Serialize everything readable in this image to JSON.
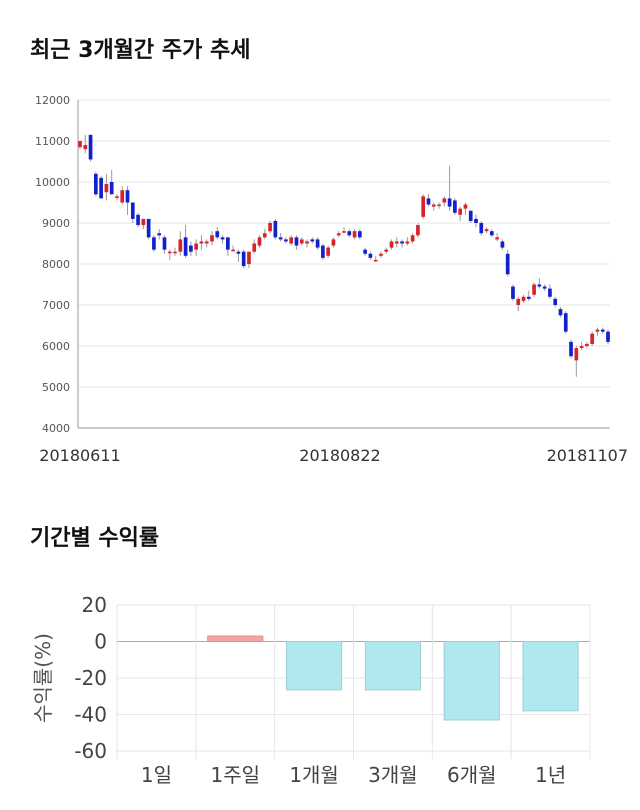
{
  "headings": {
    "price_trend": "최근 3개월간 주가 추세",
    "period_returns": "기간별 수익률"
  },
  "chart_data": [
    {
      "type": "candlestick",
      "title": "최근 3개월간 주가 추세",
      "ylim": [
        4000,
        12000
      ],
      "y_ticks": [
        "12000",
        "11000",
        "10000",
        "9000",
        "8000",
        "7000",
        "6000",
        "5000",
        "4000"
      ],
      "x_tick_labels": [
        "20180611",
        "20180822",
        "20181107"
      ],
      "grid": true,
      "colors": {
        "up": "#d9222a",
        "down": "#1122cc",
        "wick": "#999999"
      },
      "candles": [
        [
          10850,
          11000,
          10800,
          11000
        ],
        [
          10800,
          11150,
          10700,
          10900
        ],
        [
          11150,
          11150,
          10500,
          10550
        ],
        [
          10200,
          10250,
          9650,
          9700
        ],
        [
          10100,
          10150,
          9600,
          9600
        ],
        [
          9750,
          10200,
          9550,
          9950
        ],
        [
          10000,
          10300,
          9700,
          9700
        ],
        [
          9650,
          9700,
          9550,
          9650
        ],
        [
          9500,
          9900,
          9450,
          9800
        ],
        [
          9800,
          9900,
          9200,
          9500
        ],
        [
          9500,
          9500,
          9000,
          9100
        ],
        [
          9200,
          9250,
          8900,
          8950
        ],
        [
          8950,
          9100,
          8850,
          9100
        ],
        [
          9100,
          9100,
          8600,
          8650
        ],
        [
          8650,
          8700,
          8300,
          8350
        ],
        [
          8750,
          8850,
          8600,
          8700
        ],
        [
          8650,
          8700,
          8250,
          8350
        ],
        [
          8300,
          8350,
          8100,
          8300
        ],
        [
          8300,
          8400,
          8200,
          8300
        ],
        [
          8300,
          8800,
          8200,
          8600
        ],
        [
          8650,
          8950,
          8150,
          8200
        ],
        [
          8450,
          8550,
          8200,
          8300
        ],
        [
          8350,
          8600,
          8200,
          8500
        ],
        [
          8500,
          8700,
          8350,
          8550
        ],
        [
          8500,
          8600,
          8400,
          8550
        ],
        [
          8550,
          8800,
          8450,
          8700
        ],
        [
          8800,
          8900,
          8600,
          8650
        ],
        [
          8650,
          8700,
          8500,
          8600
        ],
        [
          8650,
          8650,
          8200,
          8350
        ],
        [
          8350,
          8450,
          8300,
          8350
        ],
        [
          8300,
          8350,
          8050,
          8250
        ],
        [
          8300,
          8350,
          7900,
          7950
        ],
        [
          8000,
          8300,
          7900,
          8300
        ],
        [
          8300,
          8600,
          8250,
          8500
        ],
        [
          8450,
          8700,
          8400,
          8650
        ],
        [
          8650,
          8850,
          8600,
          8750
        ],
        [
          8800,
          9050,
          8750,
          9000
        ],
        [
          9050,
          9100,
          8600,
          8650
        ],
        [
          8650,
          8750,
          8550,
          8600
        ],
        [
          8600,
          8650,
          8500,
          8550
        ],
        [
          8500,
          8700,
          8450,
          8650
        ],
        [
          8650,
          8700,
          8350,
          8450
        ],
        [
          8500,
          8650,
          8450,
          8600
        ],
        [
          8500,
          8600,
          8400,
          8550
        ],
        [
          8600,
          8650,
          8500,
          8550
        ],
        [
          8600,
          8650,
          8350,
          8400
        ],
        [
          8450,
          8500,
          8100,
          8150
        ],
        [
          8200,
          8450,
          8150,
          8400
        ],
        [
          8450,
          8650,
          8400,
          8600
        ],
        [
          8700,
          8800,
          8650,
          8750
        ],
        [
          8800,
          8900,
          8750,
          8800
        ],
        [
          8800,
          8850,
          8650,
          8700
        ],
        [
          8650,
          8850,
          8600,
          8800
        ],
        [
          8800,
          8850,
          8600,
          8650
        ],
        [
          8350,
          8400,
          8200,
          8250
        ],
        [
          8250,
          8300,
          8100,
          8150
        ],
        [
          8100,
          8200,
          8050,
          8100
        ],
        [
          8200,
          8300,
          8150,
          8250
        ],
        [
          8300,
          8400,
          8250,
          8350
        ],
        [
          8400,
          8600,
          8350,
          8550
        ],
        [
          8500,
          8650,
          8400,
          8550
        ],
        [
          8550,
          8600,
          8400,
          8500
        ],
        [
          8500,
          8650,
          8450,
          8550
        ],
        [
          8550,
          8750,
          8500,
          8700
        ],
        [
          8700,
          9000,
          8650,
          8950
        ],
        [
          9150,
          9700,
          9100,
          9650
        ],
        [
          9600,
          9700,
          9400,
          9450
        ],
        [
          9400,
          9500,
          9300,
          9450
        ],
        [
          9450,
          9500,
          9350,
          9450
        ],
        [
          9500,
          9650,
          9400,
          9600
        ],
        [
          9600,
          10400,
          9300,
          9400
        ],
        [
          9550,
          9600,
          9200,
          9250
        ],
        [
          9200,
          9400,
          9050,
          9350
        ],
        [
          9350,
          9500,
          9200,
          9450
        ],
        [
          9300,
          9300,
          9000,
          9050
        ],
        [
          9100,
          9200,
          8900,
          9000
        ],
        [
          9000,
          9050,
          8700,
          8750
        ],
        [
          8800,
          8900,
          8750,
          8850
        ],
        [
          8800,
          8850,
          8650,
          8700
        ],
        [
          8600,
          8750,
          8550,
          8650
        ],
        [
          8550,
          8600,
          8350,
          8400
        ],
        [
          8250,
          8350,
          7700,
          7750
        ],
        [
          7450,
          7500,
          7100,
          7150
        ],
        [
          7000,
          7200,
          6850,
          7150
        ],
        [
          7100,
          7250,
          7050,
          7200
        ],
        [
          7200,
          7350,
          7100,
          7150
        ],
        [
          7250,
          7550,
          7200,
          7500
        ],
        [
          7500,
          7650,
          7400,
          7450
        ],
        [
          7450,
          7500,
          7350,
          7400
        ],
        [
          7400,
          7500,
          7150,
          7200
        ],
        [
          7150,
          7200,
          6950,
          7000
        ],
        [
          6900,
          6950,
          6700,
          6750
        ],
        [
          6800,
          6850,
          6300,
          6350
        ],
        [
          6100,
          6150,
          5700,
          5750
        ],
        [
          5650,
          6000,
          5250,
          5950
        ],
        [
          5950,
          6100,
          5900,
          6000
        ],
        [
          6000,
          6100,
          5950,
          6050
        ],
        [
          6050,
          6350,
          6000,
          6300
        ],
        [
          6350,
          6450,
          6250,
          6400
        ],
        [
          6400,
          6450,
          6300,
          6350
        ],
        [
          6350,
          6400,
          6050,
          6100
        ]
      ]
    },
    {
      "type": "bar",
      "title": "기간별 수익률",
      "ylabel": "수익률(%)",
      "ylim": [
        -60,
        20
      ],
      "y_ticks": [
        "20",
        "0",
        "-20",
        "-40",
        "-60"
      ],
      "categories": [
        "1일",
        "1주일",
        "1개월",
        "3개월",
        "6개월",
        "1년"
      ],
      "values": [
        0,
        3,
        -26.5,
        -26.5,
        -43,
        -38
      ],
      "colors": {
        "positive": "#f2a3a3",
        "negative": "#b1e8f0"
      },
      "grid": true
    }
  ]
}
